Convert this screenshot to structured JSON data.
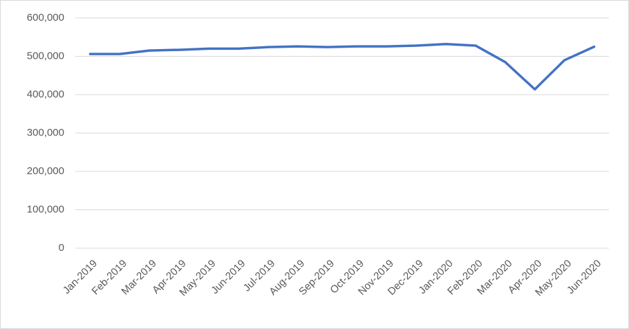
{
  "chart_data": {
    "type": "line",
    "categories": [
      "Jan-2019",
      "Feb-2019",
      "Mar-2019",
      "Apr-2019",
      "May-2019",
      "Jun-2019",
      "Jul-2019",
      "Aug-2019",
      "Sep-2019",
      "Oct-2019",
      "Nov-2019",
      "Dec-2019",
      "Jan-2020",
      "Feb-2020",
      "Mar-2020",
      "Apr-2020",
      "May-2020",
      "Jun-2020"
    ],
    "series": [
      {
        "color": "#4472c4",
        "values": [
          506000,
          506000,
          515000,
          517000,
          520000,
          520000,
          524000,
          526000,
          524000,
          526000,
          526000,
          528000,
          532000,
          528000,
          485000,
          414000,
          490000,
          525000
        ]
      }
    ],
    "ylim": [
      0,
      600000
    ],
    "yticks": [
      {
        "value": 0,
        "label": "0"
      },
      {
        "value": 100000,
        "label": "100,000"
      },
      {
        "value": 200000,
        "label": "200,000"
      },
      {
        "value": 300000,
        "label": "300,000"
      },
      {
        "value": 400000,
        "label": "400,000"
      },
      {
        "value": 500000,
        "label": "500,000"
      },
      {
        "value": 600000,
        "label": "600,000"
      }
    ],
    "grid": true
  }
}
